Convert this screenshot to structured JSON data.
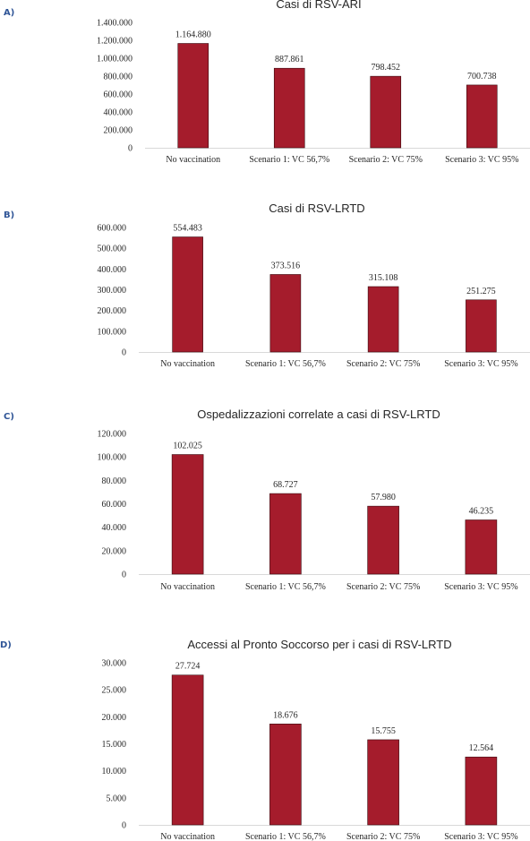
{
  "bar_color": "#a51c2c",
  "chart_data": [
    {
      "type": "bar",
      "panel_label": "A)",
      "title": "Casi di RSV-ARI",
      "categories": [
        "No vaccination",
        "Scenario 1: VC 56,7%",
        "Scenario 2: VC 75%",
        "Scenario 3: VC 95%"
      ],
      "values": [
        1164880,
        887861,
        798452,
        700738
      ],
      "value_labels": [
        "1.164.880",
        "887.861",
        "798.452",
        "700.738"
      ],
      "yticks": [
        0,
        200000,
        400000,
        600000,
        800000,
        1000000,
        1200000,
        1400000
      ],
      "ytick_labels": [
        "0",
        "200.000",
        "400.000",
        "600.000",
        "800.000",
        "1.000.000",
        "1.200.000",
        "1.400.000"
      ],
      "ylim": [
        0,
        1400000
      ],
      "grid": false
    },
    {
      "type": "bar",
      "panel_label": "B)",
      "title": "Casi di RSV-LRTD",
      "categories": [
        "No vaccination",
        "Scenario 1: VC 56,7%",
        "Scenario 2: VC 75%",
        "Scenario 3: VC 95%"
      ],
      "values": [
        554483,
        373516,
        315108,
        251275
      ],
      "value_labels": [
        "554.483",
        "373.516",
        "315.108",
        "251.275"
      ],
      "yticks": [
        0,
        100000,
        200000,
        300000,
        400000,
        500000,
        600000
      ],
      "ytick_labels": [
        "0",
        "100.000",
        "200.000",
        "300.000",
        "400.000",
        "500.000",
        "600.000"
      ],
      "ylim": [
        0,
        600000
      ],
      "grid": false
    },
    {
      "type": "bar",
      "panel_label": "C)",
      "title": "Ospedalizzazioni correlate a casi di RSV-LRTD",
      "categories": [
        "No vaccination",
        "Scenario 1: VC 56,7%",
        "Scenario 2: VC 75%",
        "Scenario 3: VC 95%"
      ],
      "values": [
        102025,
        68727,
        57980,
        46235
      ],
      "value_labels": [
        "102.025",
        "68.727",
        "57.980",
        "46.235"
      ],
      "yticks": [
        0,
        20000,
        40000,
        60000,
        80000,
        100000,
        120000
      ],
      "ytick_labels": [
        "0",
        "20.000",
        "40.000",
        "60.000",
        "80.000",
        "100.000",
        "120.000"
      ],
      "ylim": [
        0,
        120000
      ],
      "grid": false
    },
    {
      "type": "bar",
      "panel_label": "D)",
      "title": "Accessi al Pronto Soccorso per i casi di RSV-LRTD",
      "categories": [
        "No vaccination",
        "Scenario 1: VC 56,7%",
        "Scenario 2: VC 75%",
        "Scenario 3: VC 95%"
      ],
      "values": [
        27724,
        18676,
        15755,
        12564
      ],
      "value_labels": [
        "27.724",
        "18.676",
        "15.755",
        "12.564"
      ],
      "yticks": [
        0,
        5000,
        10000,
        15000,
        20000,
        25000,
        30000
      ],
      "ytick_labels": [
        "0",
        "5.000",
        "10.000",
        "15.000",
        "20.000",
        "25.000",
        "30.000"
      ],
      "ylim": [
        0,
        30000
      ],
      "grid": false
    }
  ]
}
